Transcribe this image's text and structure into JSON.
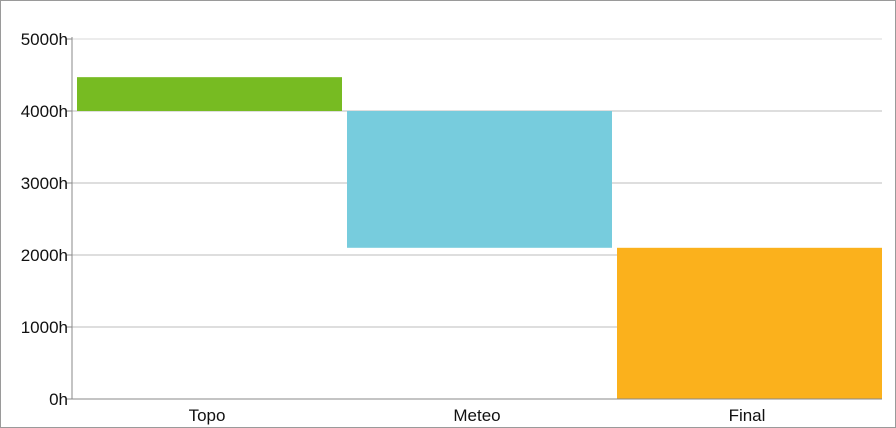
{
  "chart_data": {
    "type": "bar",
    "subtype": "waterfall",
    "title": "",
    "xlabel": "",
    "ylabel": "",
    "categories": [
      "Topo",
      "Meteo",
      "Final"
    ],
    "bars": [
      {
        "category": "Topo",
        "start": 4000,
        "end": 4470,
        "color": "#77bb22"
      },
      {
        "category": "Meteo",
        "start": 2100,
        "end": 4000,
        "color": "#77ccdd"
      },
      {
        "category": "Final",
        "start": 0,
        "end": 2100,
        "color": "#fbb11c"
      }
    ],
    "ylim": [
      0,
      5000
    ],
    "yticks": [
      0,
      1000,
      2000,
      3000,
      4000,
      5000
    ],
    "ytick_labels": [
      "0h",
      "1000h",
      "2000h",
      "3000h",
      "4000h",
      "5000h"
    ],
    "grid": true,
    "legend": "none"
  }
}
